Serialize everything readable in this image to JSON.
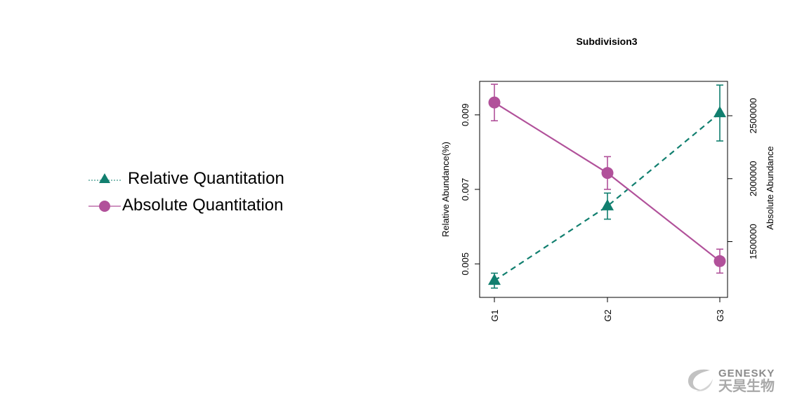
{
  "chart_data": {
    "type": "line",
    "title": "Subdivision3",
    "categories": [
      "G1",
      "G2",
      "G3"
    ],
    "ylabel_left": "Relative Abundance(%)",
    "ylabel_right": "Absolute Abundance",
    "yticks_left": [
      "0.005",
      "0.007",
      "0.009"
    ],
    "yticks_left_values": [
      0.005,
      0.007,
      0.009
    ],
    "yticks_right": [
      "1500000",
      "2000000",
      "2500000"
    ],
    "yticks_right_values": [
      1500000,
      2000000,
      2500000
    ],
    "ylim_left": [
      0.0041,
      0.0099
    ],
    "ylim_right": [
      1057000,
      2773000
    ],
    "legend_position": "left",
    "series": [
      {
        "name": "Relative Quantitation",
        "axis": "left",
        "color": "#117f6f",
        "marker": "triangle",
        "line_style": "dashed",
        "values": [
          0.00455,
          0.00655,
          0.00905
        ],
        "error": [
          0.0002,
          0.00035,
          0.00075
        ]
      },
      {
        "name": "Absolute Quantitation",
        "axis": "right",
        "color": "#b1519a",
        "marker": "circle",
        "line_style": "solid",
        "values": [
          2605000,
          2045000,
          1345000
        ],
        "error": [
          145000,
          130000,
          95000
        ]
      }
    ]
  },
  "logo": {
    "text_en": "GENESKY",
    "text_cn": "天昊生物"
  }
}
